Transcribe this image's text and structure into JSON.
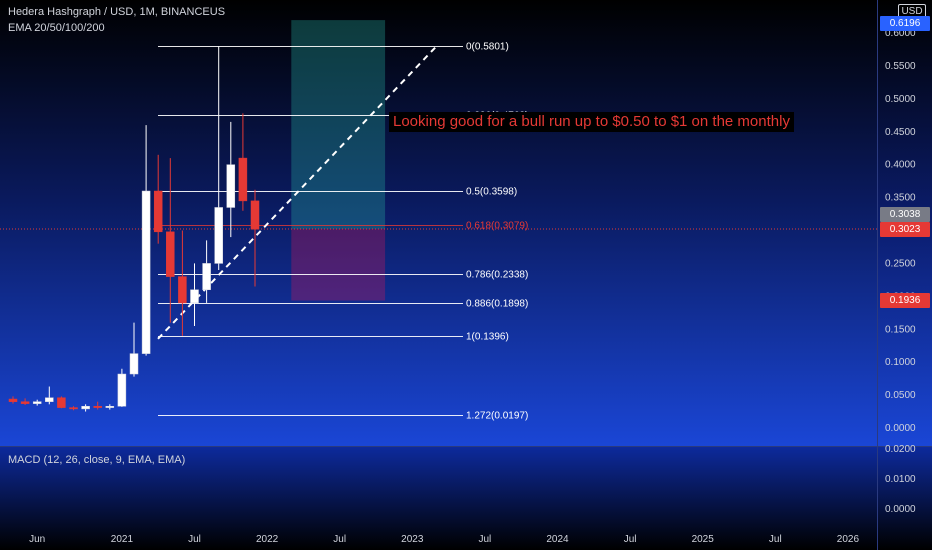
{
  "header": {
    "symbol_line": "Hedera Hashgraph / USD, 1M, BINANCEUS",
    "ema_line": "EMA 20/50/100/200",
    "currency_badge": "USD"
  },
  "macd_label": "MACD (12, 26, close, 9, EMA, EMA)",
  "annotation": "Looking good for a bull run up to $0.50 to $1 on the monthly",
  "price_badges": {
    "top": "0.6196",
    "gray": "0.3038",
    "red1": "0.3023",
    "red2": "0.1936"
  },
  "colors": {
    "up_candle": "#ffffff",
    "down_candle": "#e53935",
    "fib_line": "#ffffff",
    "fib_618": "#e53935",
    "target_zone": "#26a69a",
    "stop_zone": "#c2185b",
    "trendline": "#ffffff"
  },
  "chart_data": {
    "type": "candlestick",
    "title": "Hedera Hashgraph / USD, 1M, BINANCEUS",
    "y_axis": {
      "ticks": [
        "0.6000",
        "0.5500",
        "0.5000",
        "0.4500",
        "0.4000",
        "0.3500",
        "0.3000",
        "0.2500",
        "0.2000",
        "0.1500",
        "0.1000",
        "0.0500",
        "0.0000"
      ],
      "ylim": [
        0.0,
        0.6
      ]
    },
    "x_axis": {
      "ticks": [
        "Jun",
        "2021",
        "Jul",
        "2022",
        "Jul",
        "2023",
        "Jul",
        "2024",
        "Jul",
        "2025",
        "Jul",
        "2026"
      ]
    },
    "candles": [
      {
        "date": "2020-04",
        "o": 0.044,
        "h": 0.048,
        "l": 0.037,
        "c": 0.04
      },
      {
        "date": "2020-05",
        "o": 0.04,
        "h": 0.045,
        "l": 0.035,
        "c": 0.037
      },
      {
        "date": "2020-06",
        "o": 0.037,
        "h": 0.043,
        "l": 0.034,
        "c": 0.04
      },
      {
        "date": "2020-07",
        "o": 0.04,
        "h": 0.063,
        "l": 0.036,
        "c": 0.046
      },
      {
        "date": "2020-08",
        "o": 0.046,
        "h": 0.048,
        "l": 0.03,
        "c": 0.031
      },
      {
        "date": "2020-09",
        "o": 0.031,
        "h": 0.033,
        "l": 0.027,
        "c": 0.029
      },
      {
        "date": "2020-10",
        "o": 0.029,
        "h": 0.036,
        "l": 0.025,
        "c": 0.033
      },
      {
        "date": "2020-11",
        "o": 0.033,
        "h": 0.04,
        "l": 0.028,
        "c": 0.031
      },
      {
        "date": "2020-12",
        "o": 0.031,
        "h": 0.036,
        "l": 0.028,
        "c": 0.033
      },
      {
        "date": "2021-01",
        "o": 0.033,
        "h": 0.09,
        "l": 0.032,
        "c": 0.082
      },
      {
        "date": "2021-02",
        "o": 0.082,
        "h": 0.16,
        "l": 0.078,
        "c": 0.113
      },
      {
        "date": "2021-03",
        "o": 0.113,
        "h": 0.46,
        "l": 0.11,
        "c": 0.36
      },
      {
        "date": "2021-04",
        "o": 0.36,
        "h": 0.415,
        "l": 0.28,
        "c": 0.298
      },
      {
        "date": "2021-05",
        "o": 0.298,
        "h": 0.41,
        "l": 0.16,
        "c": 0.23
      },
      {
        "date": "2021-06",
        "o": 0.23,
        "h": 0.3,
        "l": 0.14,
        "c": 0.19
      },
      {
        "date": "2021-07",
        "o": 0.19,
        "h": 0.25,
        "l": 0.155,
        "c": 0.21
      },
      {
        "date": "2021-08",
        "o": 0.21,
        "h": 0.285,
        "l": 0.19,
        "c": 0.25
      },
      {
        "date": "2021-09",
        "o": 0.25,
        "h": 0.58,
        "l": 0.24,
        "c": 0.335
      },
      {
        "date": "2021-10",
        "o": 0.335,
        "h": 0.465,
        "l": 0.29,
        "c": 0.4
      },
      {
        "date": "2021-11",
        "o": 0.41,
        "h": 0.478,
        "l": 0.33,
        "c": 0.345
      },
      {
        "date": "2021-12",
        "o": 0.345,
        "h": 0.362,
        "l": 0.215,
        "c": 0.302
      }
    ],
    "fibonacci": [
      {
        "label": "0(0.5801)",
        "level": 0.5801
      },
      {
        "label": "0.236(0.4762)",
        "level": 0.4762
      },
      {
        "label": "0.5(0.3598)",
        "level": 0.3598
      },
      {
        "label": "0.618(0.3079)",
        "level": 0.3079
      },
      {
        "label": "0.786(0.2338)",
        "level": 0.2338
      },
      {
        "label": "0.886(0.1898)",
        "level": 0.1898
      },
      {
        "label": "1(0.1396)",
        "level": 0.1396
      },
      {
        "label": "1.272(0.0197)",
        "level": 0.0197
      }
    ],
    "position": {
      "entry": 0.3023,
      "target": 0.6196,
      "stop": 0.1936
    },
    "annotation": "Looking good for a bull run up to $0.50 to $1 on the monthly",
    "macd_axis_ticks": [
      "0.0200",
      "0.0100",
      "0.0000"
    ]
  }
}
